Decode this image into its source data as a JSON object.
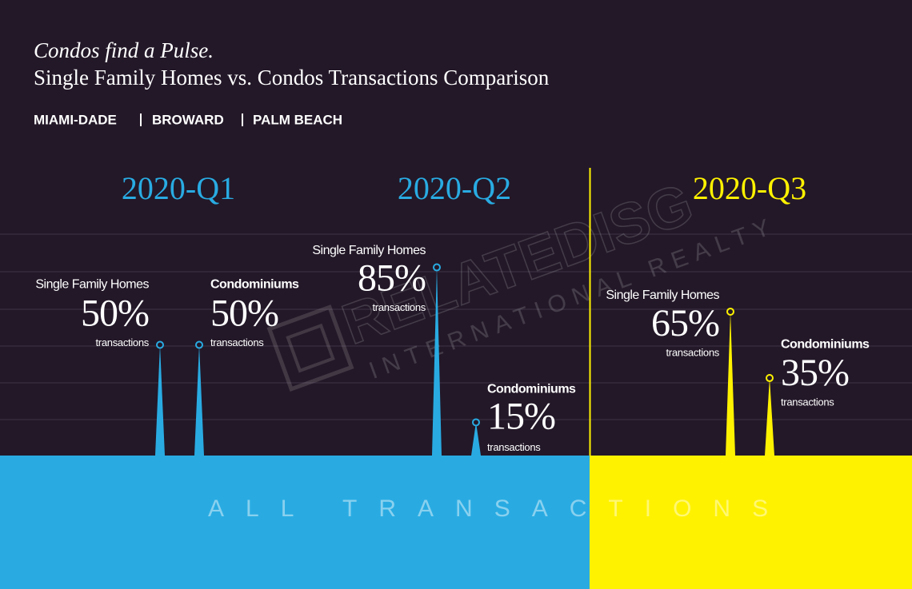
{
  "chart_data": {
    "type": "spike",
    "title": "Condos find a Pulse.",
    "subtitle": "Single Family Homes vs. Condos Transactions Comparison",
    "regions": [
      "MIAMI-DADE",
      "BROWARD",
      "PALM BEACH"
    ],
    "categories": [
      "2020-Q1",
      "2020-Q2",
      "2020-Q3"
    ],
    "category_colors": [
      "#29abe2",
      "#29abe2",
      "#fff200"
    ],
    "unit_label": "transactions",
    "ylim": [
      0,
      100
    ],
    "series": [
      {
        "name": "Single Family Homes",
        "values": [
          50,
          85,
          65
        ],
        "value_labels": [
          "50%",
          "85%",
          "65%"
        ]
      },
      {
        "name": "Condominiums",
        "values": [
          50,
          15,
          35
        ],
        "value_labels": [
          "50%",
          "15%",
          "35%"
        ]
      }
    ],
    "footer": "ALL TRANSACTIONS",
    "watermark": [
      "RELATEDISG",
      "INTERNATIONAL REALTY"
    ]
  }
}
